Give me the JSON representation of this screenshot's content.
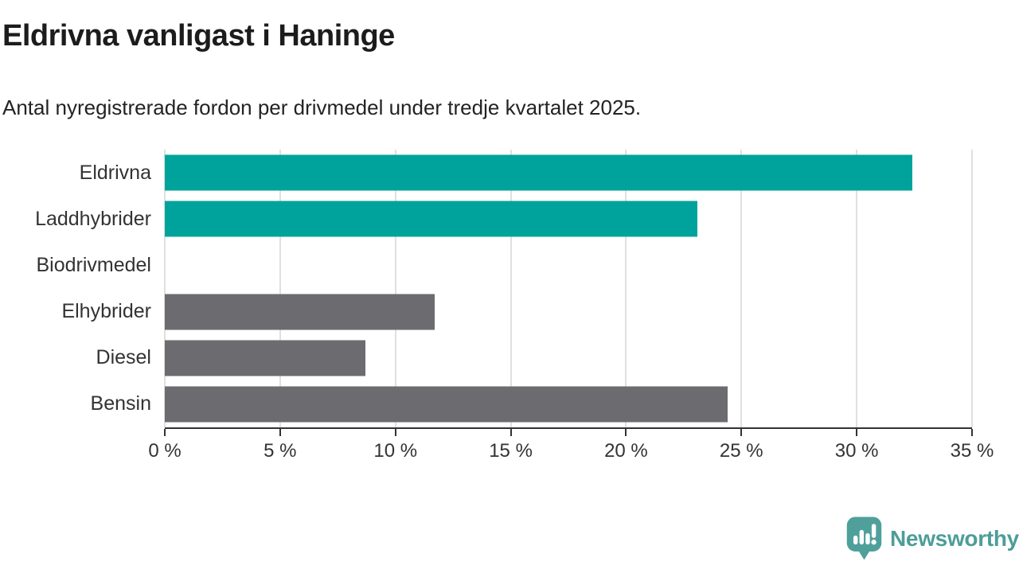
{
  "header": {
    "title": "Eldrivna vanligast i Haninge",
    "subtitle": "Antal nyregistrerade fordon per drivmedel under tredje kvartalet 2025."
  },
  "chart_data": {
    "type": "bar",
    "orientation": "horizontal",
    "title": "Eldrivna vanligast i Haninge",
    "subtitle": "Antal nyregistrerade fordon per drivmedel under tredje kvartalet 2025.",
    "categories": [
      "Eldrivna",
      "Laddhybrider",
      "Biodrivmedel",
      "Elhybrider",
      "Diesel",
      "Bensin"
    ],
    "values": [
      32.4,
      23.1,
      0,
      11.7,
      8.7,
      24.4
    ],
    "unit": "%",
    "xlim": [
      0,
      35
    ],
    "x_tick_values": [
      0,
      5,
      10,
      15,
      20,
      25,
      30,
      35
    ],
    "x_tick_labels": [
      "0 %",
      "5 %",
      "10 %",
      "15 %",
      "20 %",
      "25 %",
      "30 %",
      "35 %"
    ],
    "grid": "vertical",
    "legend": "none",
    "colors": {
      "highlight": "#00A39B",
      "default": "#6B6B70",
      "gridline": "#e0e0e0",
      "axis": "#333333"
    },
    "bar_color_keys": [
      "highlight",
      "highlight",
      "default",
      "default",
      "default",
      "default"
    ]
  },
  "footer": {
    "logo_text": "Newsworthy",
    "logo_color": "#4D9D98"
  }
}
